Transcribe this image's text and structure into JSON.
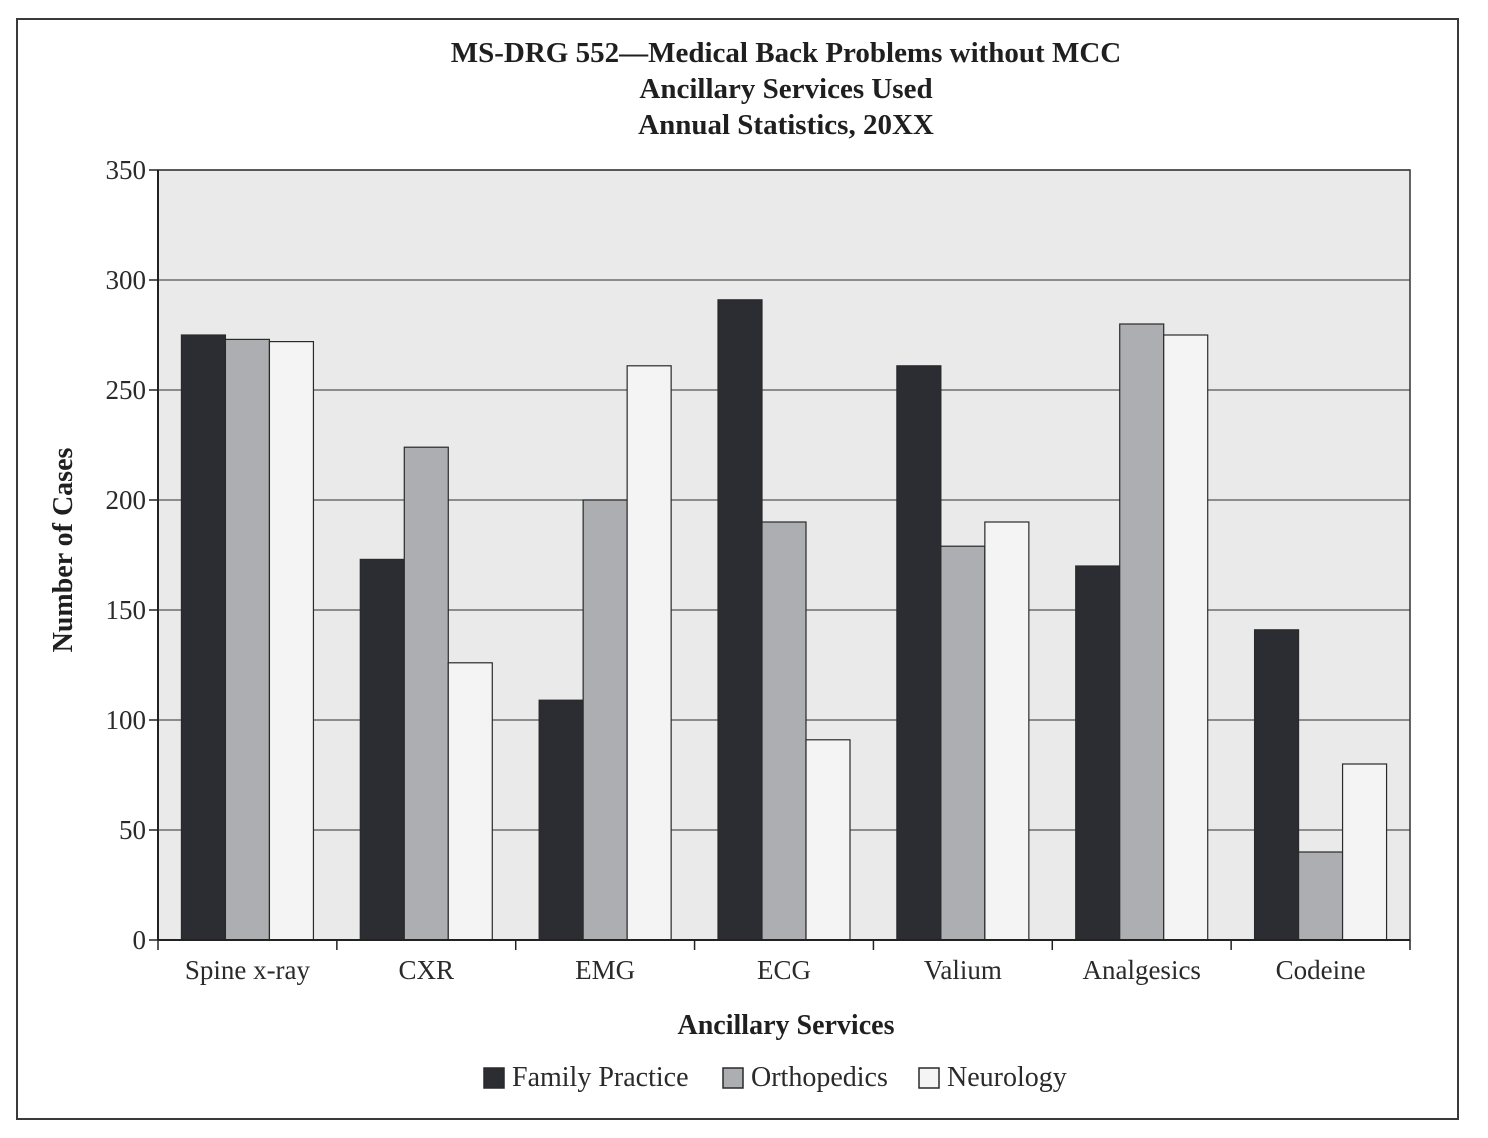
{
  "chart_data": {
    "type": "bar",
    "title_lines": [
      "MS-DRG 552—Medical Back Problems without MCC",
      "Ancillary Services Used",
      "Annual Statistics, 20XX"
    ],
    "xlabel": "Ancillary Services",
    "ylabel": "Number of Cases",
    "ylim": [
      0,
      350
    ],
    "yticks": [
      "0",
      "50",
      "100",
      "150",
      "200",
      "250",
      "300",
      "350"
    ],
    "grid": true,
    "legend_position": "bottom",
    "categories": [
      "Spine x-ray",
      "CXR",
      "EMG",
      "ECG",
      "Valium",
      "Analgesics",
      "Codeine"
    ],
    "series": [
      {
        "name": "Family Practice",
        "color": "#2b2d33",
        "values": [
          275,
          173,
          109,
          291,
          261,
          170,
          141
        ]
      },
      {
        "name": "Orthopedics",
        "color": "#adaeb2",
        "values": [
          273,
          224,
          200,
          190,
          179,
          280,
          40
        ]
      },
      {
        "name": "Neurology",
        "color": "#f4f4f4",
        "values": [
          272,
          126,
          261,
          91,
          190,
          275,
          80
        ]
      }
    ],
    "plot_background": "#e9eae9"
  }
}
